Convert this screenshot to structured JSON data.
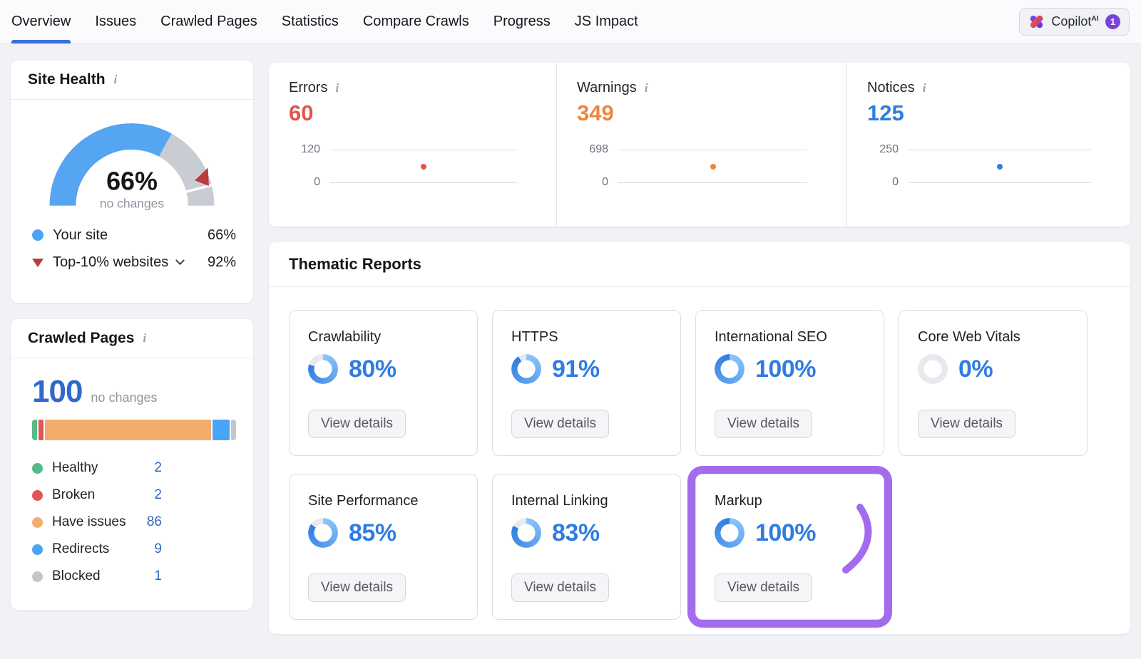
{
  "nav": {
    "tabs": [
      {
        "label": "Overview",
        "active": true
      },
      {
        "label": "Issues",
        "active": false
      },
      {
        "label": "Crawled Pages",
        "active": false
      },
      {
        "label": "Statistics",
        "active": false
      },
      {
        "label": "Compare Crawls",
        "active": false
      },
      {
        "label": "Progress",
        "active": false
      },
      {
        "label": "JS Impact",
        "active": false
      }
    ],
    "copilot": {
      "label": "Copilot",
      "superscript": "AI",
      "badge": "1"
    }
  },
  "site_health": {
    "title": "Site Health",
    "score": "66%",
    "score_value": 66,
    "change": "no changes",
    "benchmark_value": 92,
    "legend": [
      {
        "label": "Your site",
        "value": "66%",
        "marker": "blue-dot",
        "has_dropdown": false
      },
      {
        "label": "Top-10% websites",
        "value": "92%",
        "marker": "red-triangle",
        "has_dropdown": true
      }
    ]
  },
  "crawled_pages": {
    "title": "Crawled Pages",
    "total": "100",
    "change": "no changes",
    "legend": [
      {
        "label": "Healthy",
        "value": "2",
        "color": "#57b987"
      },
      {
        "label": "Broken",
        "value": "2",
        "color": "#e05555"
      },
      {
        "label": "Have issues",
        "value": "86",
        "color": "#f2ad6d"
      },
      {
        "label": "Redirects",
        "value": "9",
        "color": "#49a4f5"
      },
      {
        "label": "Blocked",
        "value": "1",
        "color": "#c3c6cd"
      }
    ]
  },
  "issues": {
    "cards": [
      {
        "title": "Errors",
        "value": "60",
        "color": "#e2544c",
        "axis_max": "120",
        "axis_min": "0",
        "point_value": 60,
        "point_max": 120
      },
      {
        "title": "Warnings",
        "value": "349",
        "color": "#ed8540",
        "axis_max": "698",
        "axis_min": "0",
        "point_value": 349,
        "point_max": 698
      },
      {
        "title": "Notices",
        "value": "125",
        "color": "#2f7de1",
        "axis_max": "250",
        "axis_min": "0",
        "point_value": 125,
        "point_max": 250
      }
    ]
  },
  "thematic": {
    "title": "Thematic Reports",
    "view_details_label": "View details",
    "cards": [
      {
        "title": "Crawlability",
        "percent": "80%",
        "value": 80,
        "highlighted": false
      },
      {
        "title": "HTTPS",
        "percent": "91%",
        "value": 91,
        "highlighted": false
      },
      {
        "title": "International SEO",
        "percent": "100%",
        "value": 100,
        "highlighted": false
      },
      {
        "title": "Core Web Vitals",
        "percent": "0%",
        "value": 0,
        "highlighted": false
      },
      {
        "title": "Site Performance",
        "percent": "85%",
        "value": 85,
        "highlighted": false
      },
      {
        "title": "Internal Linking",
        "percent": "83%",
        "value": 83,
        "highlighted": false
      },
      {
        "title": "Markup",
        "percent": "100%",
        "value": 100,
        "highlighted": true
      }
    ]
  },
  "colors": {
    "accent_blue": "#2f7de1",
    "link_blue": "#2b66c6",
    "nav_active_blue": "#3a6fd8",
    "gauge_blue": "#55a5f3",
    "gauge_gray": "#c9ccd2",
    "marker_red": "#bb3a3e",
    "ring_track": "#e7e9ee",
    "ring_start": "#8ec6fa",
    "highlight_purple": "#a36ced",
    "copilot_badge_purple": "#7a42d8"
  }
}
